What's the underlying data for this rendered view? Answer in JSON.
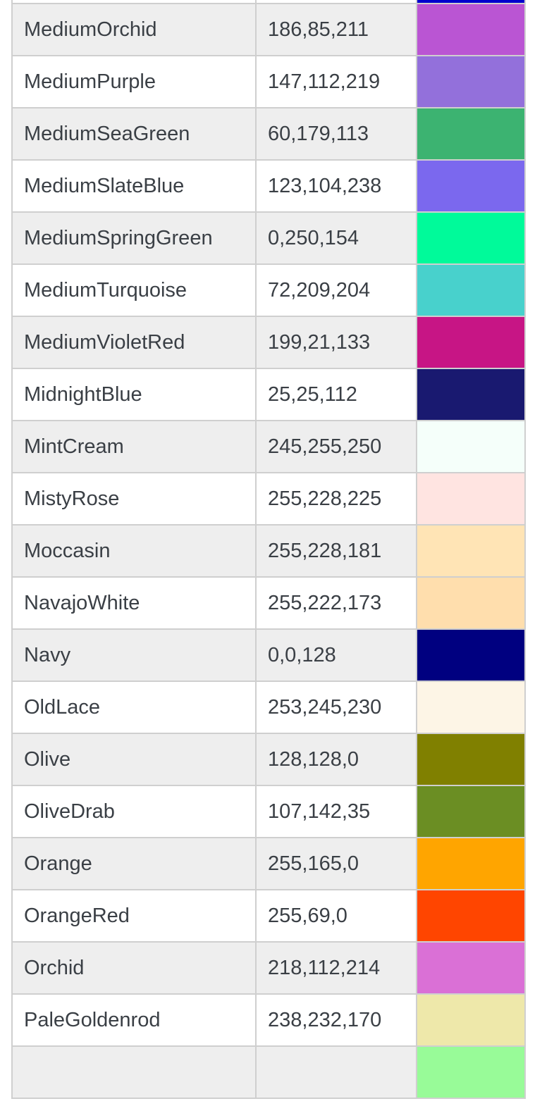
{
  "colors": [
    {
      "name": "",
      "rgb": "",
      "hex": "#0000cd"
    },
    {
      "name": "MediumOrchid",
      "rgb": "186,85,211",
      "hex": "#ba55d3"
    },
    {
      "name": "MediumPurple",
      "rgb": "147,112,219",
      "hex": "#9370db"
    },
    {
      "name": "MediumSeaGreen",
      "rgb": "60,179,113",
      "hex": "#3cb371"
    },
    {
      "name": "MediumSlateBlue",
      "rgb": "123,104,238",
      "hex": "#7b68ee"
    },
    {
      "name": "MediumSpringGreen",
      "rgb": "0,250,154",
      "hex": "#00fa9a"
    },
    {
      "name": "MediumTurquoise",
      "rgb": "72,209,204",
      "hex": "#48d1cc"
    },
    {
      "name": "MediumVioletRed",
      "rgb": "199,21,133",
      "hex": "#c71585"
    },
    {
      "name": "MidnightBlue",
      "rgb": "25,25,112",
      "hex": "#191970"
    },
    {
      "name": "MintCream",
      "rgb": "245,255,250",
      "hex": "#f5fffa"
    },
    {
      "name": "MistyRose",
      "rgb": "255,228,225",
      "hex": "#ffe4e1"
    },
    {
      "name": "Moccasin",
      "rgb": "255,228,181",
      "hex": "#ffe4b5"
    },
    {
      "name": "NavajoWhite",
      "rgb": "255,222,173",
      "hex": "#ffdead"
    },
    {
      "name": "Navy",
      "rgb": "0,0,128",
      "hex": "#000080"
    },
    {
      "name": "OldLace",
      "rgb": "253,245,230",
      "hex": "#fdf5e6"
    },
    {
      "name": "Olive",
      "rgb": "128,128,0",
      "hex": "#808000"
    },
    {
      "name": "OliveDrab",
      "rgb": "107,142,35",
      "hex": "#6b8e23"
    },
    {
      "name": "Orange",
      "rgb": "255,165,0",
      "hex": "#ffa500"
    },
    {
      "name": "OrangeRed",
      "rgb": "255,69,0",
      "hex": "#ff4500"
    },
    {
      "name": "Orchid",
      "rgb": "218,112,214",
      "hex": "#da70d6"
    },
    {
      "name": "PaleGoldenrod",
      "rgb": "238,232,170",
      "hex": "#eee8aa"
    },
    {
      "name": "",
      "rgb": "",
      "hex": "#98fb98"
    }
  ]
}
